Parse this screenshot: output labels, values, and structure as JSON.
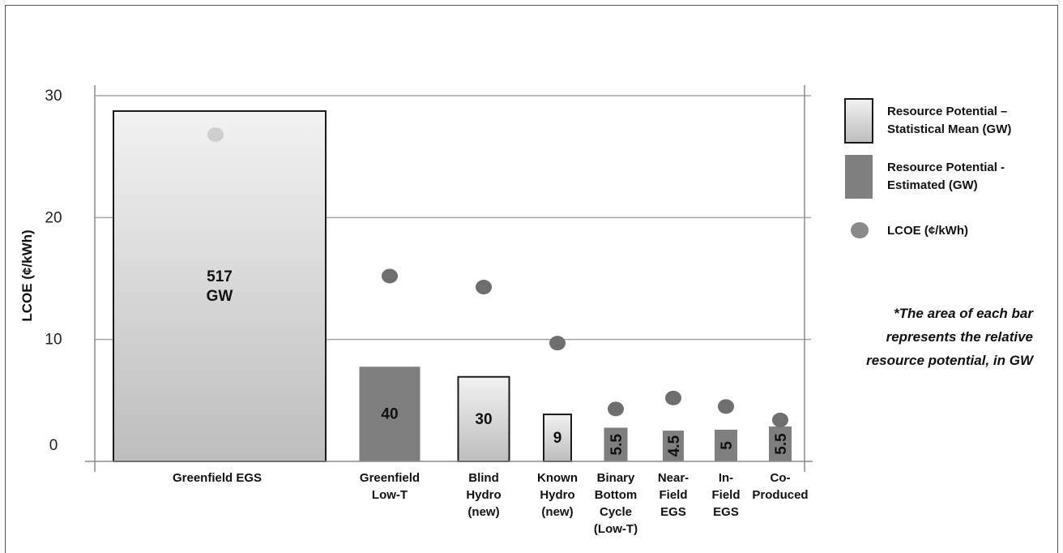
{
  "chart_data": {
    "type": "bar",
    "ylabel": "LCOE (¢/kWh)",
    "ylim": [
      0,
      30
    ],
    "yticks": [
      0,
      10,
      20,
      30
    ],
    "grid": true,
    "legend_placement": "right",
    "categories": [
      [
        "Greenfield EGS"
      ],
      [
        "Greenfield",
        "Low-T"
      ],
      [
        "Blind",
        "Hydro",
        "(new)"
      ],
      [
        "Known",
        "Hydro",
        "(new)"
      ],
      [
        "Binary",
        "Bottom",
        "Cycle",
        "(Low-T)"
      ],
      [
        "Near-",
        "Field",
        "EGS"
      ],
      [
        "In-",
        "Field",
        "EGS"
      ],
      [
        "Co-",
        "Produced"
      ]
    ],
    "resource_potential_gw": [
      517,
      40,
      30,
      9,
      5.5,
      4.5,
      5,
      5.5
    ],
    "bar_labels": [
      [
        "517",
        "GW"
      ],
      [
        "40"
      ],
      [
        "30"
      ],
      [
        "9"
      ],
      [
        "5.5"
      ],
      [
        "4.5"
      ],
      [
        "5"
      ],
      [
        "5.5"
      ]
    ],
    "bar_label_rotated": [
      false,
      false,
      false,
      false,
      true,
      true,
      true,
      true
    ],
    "bar_type": [
      "statistical",
      "estimated",
      "statistical",
      "statistical",
      "estimated",
      "estimated",
      "estimated",
      "estimated"
    ],
    "lcoe": [
      26.8,
      15.2,
      14.3,
      9.7,
      4.3,
      5.2,
      4.5,
      3.4
    ],
    "legend": [
      {
        "key": "statistical",
        "lines": [
          "Resource Potential –",
          "Statistical Mean (GW)"
        ]
      },
      {
        "key": "estimated",
        "lines": [
          "Resource Potential -",
          "Estimated (GW)"
        ]
      },
      {
        "key": "lcoe",
        "lines": [
          "LCOE (¢/kWh)"
        ]
      }
    ],
    "annotation": [
      "*The area of each bar",
      "represents the relative",
      "resource potential, in GW"
    ]
  },
  "colors": {
    "statistical_top": "#f2f2f2",
    "statistical_bottom": "#bdbdbd",
    "estimated": "#7f7f7f",
    "lcoe_dot": "#6e6e6e",
    "lcoe_dot_light": "#cfcfcf",
    "grid": "#a6a6a6",
    "axis": "#8c8c8c"
  }
}
